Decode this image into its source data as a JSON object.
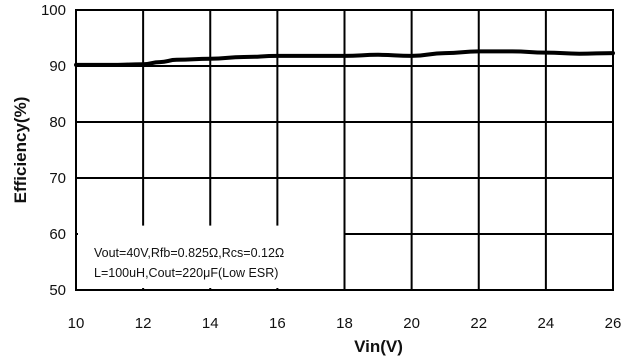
{
  "chart_data": {
    "type": "line",
    "title": "",
    "xlabel": "Vin(V)",
    "ylabel": "Efficiency(%)",
    "xlim": [
      10,
      26
    ],
    "ylim": [
      50,
      100
    ],
    "xticks": [
      "10",
      "12",
      "14",
      "16",
      "18",
      "20",
      "22",
      "24",
      "26"
    ],
    "yticks": [
      "50",
      "60",
      "70",
      "80",
      "90",
      "100"
    ],
    "grid": true,
    "legend": "none",
    "annotation_lines": [
      "Vout=40V,Rfb=0.825Ω,Rcs=0.12Ω",
      "L=100uH,Cout=220μF(Low ESR)"
    ],
    "series": [
      {
        "color": "#000000",
        "x": [
          10,
          11,
          12,
          12.5,
          13,
          14,
          15,
          16,
          17,
          18,
          19,
          20,
          21,
          22,
          23,
          24,
          25,
          26
        ],
        "y": [
          90.2,
          90.2,
          90.3,
          90.7,
          91.1,
          91.3,
          91.6,
          91.8,
          91.8,
          91.8,
          92.0,
          91.8,
          92.3,
          92.6,
          92.6,
          92.4,
          92.2,
          92.3
        ]
      }
    ]
  }
}
